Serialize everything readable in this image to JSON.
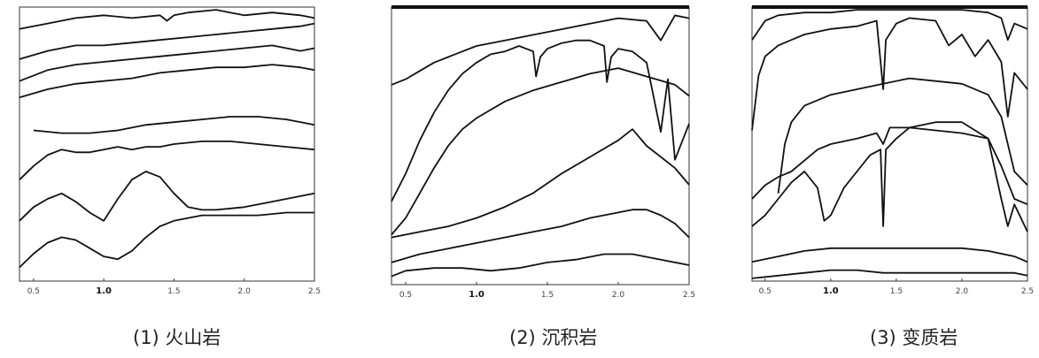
{
  "chart_data": [
    {
      "type": "line",
      "title": "(1) 火山岩",
      "x_ticks": [
        "0.5",
        "1.0",
        "1.5",
        "2.0",
        "2.5"
      ],
      "xlim": [
        0.4,
        2.5
      ],
      "ylim": [
        0,
        100
      ],
      "series": [
        {
          "x": [
            0.4,
            0.6,
            0.8,
            1.0,
            1.2,
            1.4,
            1.45,
            1.5,
            1.6,
            1.8,
            1.9,
            2.0,
            2.2,
            2.4,
            2.5
          ],
          "y": [
            92,
            94,
            96,
            97,
            96,
            97,
            95,
            97,
            98,
            99,
            98,
            97,
            98,
            97,
            96
          ]
        },
        {
          "x": [
            0.4,
            0.6,
            0.8,
            1.0,
            1.2,
            1.4,
            1.6,
            1.8,
            2.0,
            2.2,
            2.4,
            2.5
          ],
          "y": [
            81,
            84,
            86,
            86,
            87,
            88,
            89,
            90,
            91,
            92,
            93,
            94
          ]
        },
        {
          "x": [
            0.4,
            0.6,
            0.8,
            1.0,
            1.2,
            1.4,
            1.6,
            1.8,
            2.0,
            2.2,
            2.4,
            2.5
          ],
          "y": [
            73,
            77,
            79,
            80,
            81,
            82,
            83,
            84,
            85,
            86,
            84,
            85
          ]
        },
        {
          "x": [
            0.4,
            0.6,
            0.8,
            1.0,
            1.2,
            1.4,
            1.6,
            1.8,
            2.0,
            2.2,
            2.4,
            2.5
          ],
          "y": [
            67,
            70,
            72,
            73,
            74,
            76,
            77,
            78,
            78,
            79,
            78,
            77
          ]
        },
        {
          "x": [
            0.5,
            0.7,
            0.9,
            1.1,
            1.3,
            1.5,
            1.7,
            1.9,
            2.1,
            2.3,
            2.5
          ],
          "y": [
            55,
            54,
            54,
            55,
            57,
            58,
            59,
            60,
            60,
            59,
            57
          ]
        },
        {
          "x": [
            0.4,
            0.5,
            0.6,
            0.7,
            0.8,
            0.9,
            1.0,
            1.1,
            1.2,
            1.3,
            1.4,
            1.5,
            1.7,
            1.9,
            2.1,
            2.3,
            2.5
          ],
          "y": [
            37,
            42,
            46,
            48,
            47,
            47,
            48,
            49,
            48,
            49,
            49,
            50,
            51,
            51,
            50,
            49,
            48
          ]
        },
        {
          "x": [
            0.4,
            0.5,
            0.6,
            0.7,
            0.8,
            0.9,
            1.0,
            1.1,
            1.2,
            1.3,
            1.4,
            1.5,
            1.6,
            1.7,
            1.8,
            2.0,
            2.2,
            2.5
          ],
          "y": [
            22,
            27,
            30,
            32,
            29,
            25,
            22,
            30,
            37,
            40,
            38,
            32,
            27,
            26,
            26,
            27,
            29,
            32
          ]
        },
        {
          "x": [
            0.4,
            0.5,
            0.6,
            0.7,
            0.8,
            0.9,
            1.0,
            1.1,
            1.2,
            1.3,
            1.4,
            1.5,
            1.7,
            1.9,
            2.1,
            2.3,
            2.5
          ],
          "y": [
            5,
            10,
            14,
            16,
            15,
            12,
            9,
            8,
            11,
            16,
            20,
            22,
            24,
            24,
            24,
            25,
            25
          ]
        }
      ]
    },
    {
      "type": "line",
      "title": "(2) 沉积岩",
      "x_ticks": [
        "0.5",
        "1.0",
        "1.5",
        "2.0",
        "2.5"
      ],
      "xlim": [
        0.4,
        2.5
      ],
      "ylim": [
        0,
        100
      ],
      "series": [
        {
          "x": [
            0.4,
            0.5,
            0.6,
            0.7,
            0.8,
            0.9,
            1.0,
            1.2,
            1.4,
            1.6,
            1.8,
            2.0,
            2.2,
            2.3,
            2.4,
            2.5
          ],
          "y": [
            72,
            74,
            77,
            80,
            82,
            84,
            86,
            88,
            90,
            92,
            94,
            96,
            95,
            88,
            97,
            96
          ]
        },
        {
          "x": [
            0.4,
            0.5,
            0.6,
            0.7,
            0.8,
            0.9,
            1.0,
            1.1,
            1.2,
            1.3,
            1.4,
            1.42,
            1.45,
            1.5,
            1.6,
            1.7,
            1.8,
            1.9,
            1.92,
            1.95,
            2.0,
            2.1,
            2.2,
            2.3,
            2.35,
            2.4,
            2.5
          ],
          "y": [
            30,
            40,
            52,
            62,
            70,
            76,
            80,
            83,
            84,
            86,
            84,
            75,
            82,
            85,
            87,
            88,
            88,
            86,
            73,
            82,
            85,
            84,
            80,
            55,
            74,
            45,
            58
          ]
        },
        {
          "x": [
            0.4,
            0.5,
            0.6,
            0.7,
            0.8,
            0.9,
            1.0,
            1.2,
            1.4,
            1.6,
            1.8,
            2.0,
            2.2,
            2.4,
            2.5
          ],
          "y": [
            18,
            24,
            33,
            42,
            50,
            56,
            60,
            66,
            70,
            73,
            76,
            78,
            75,
            72,
            68
          ]
        },
        {
          "x": [
            0.4,
            0.6,
            0.8,
            1.0,
            1.2,
            1.4,
            1.6,
            1.8,
            2.0,
            2.1,
            2.2,
            2.4,
            2.5
          ],
          "y": [
            17,
            19,
            21,
            24,
            28,
            33,
            40,
            46,
            52,
            56,
            50,
            42,
            36
          ]
        },
        {
          "x": [
            0.4,
            0.6,
            0.8,
            1.0,
            1.2,
            1.4,
            1.6,
            1.8,
            2.0,
            2.1,
            2.2,
            2.3,
            2.4,
            2.5
          ],
          "y": [
            8,
            11,
            13,
            15,
            17,
            19,
            21,
            24,
            26,
            27,
            27,
            25,
            22,
            17
          ]
        },
        {
          "x": [
            0.4,
            0.5,
            0.7,
            0.9,
            1.1,
            1.3,
            1.5,
            1.7,
            1.9,
            2.1,
            2.3,
            2.5
          ],
          "y": [
            3,
            5,
            6,
            6,
            5,
            6,
            8,
            9,
            11,
            11,
            9,
            7
          ]
        }
      ]
    },
    {
      "type": "line",
      "title": "(3) 变质岩",
      "x_ticks": [
        "0.5",
        "1.0",
        "1.5",
        "2.0",
        "2.5"
      ],
      "xlim": [
        0.4,
        2.5
      ],
      "ylim": [
        0,
        100
      ],
      "series": [
        {
          "x": [
            0.4,
            0.5,
            0.6,
            0.8,
            1.0,
            1.2,
            1.4,
            1.6,
            1.8,
            2.0,
            2.2,
            2.3,
            2.35,
            2.4,
            2.5
          ],
          "y": [
            88,
            95,
            97,
            98,
            98,
            99,
            99,
            99,
            99,
            99,
            98,
            96,
            88,
            94,
            92
          ]
        },
        {
          "x": [
            0.4,
            0.45,
            0.5,
            0.6,
            0.7,
            0.8,
            1.0,
            1.2,
            1.35,
            1.4,
            1.42,
            1.5,
            1.6,
            1.8,
            1.9,
            2.0,
            2.1,
            2.2,
            2.3,
            2.35,
            2.4,
            2.5
          ],
          "y": [
            55,
            75,
            82,
            86,
            88,
            90,
            92,
            93,
            95,
            70,
            88,
            94,
            96,
            95,
            86,
            90,
            82,
            88,
            80,
            60,
            76,
            70
          ]
        },
        {
          "x": [
            0.6,
            0.65,
            0.7,
            0.8,
            1.0,
            1.2,
            1.4,
            1.6,
            1.8,
            2.0,
            2.2,
            2.3,
            2.4,
            2.5
          ],
          "y": [
            32,
            50,
            58,
            64,
            68,
            70,
            72,
            74,
            73,
            72,
            68,
            60,
            40,
            35
          ]
        },
        {
          "x": [
            0.4,
            0.5,
            0.6,
            0.7,
            0.8,
            0.9,
            1.0,
            1.2,
            1.35,
            1.4,
            1.45,
            1.6,
            1.8,
            2.0,
            2.2,
            2.3,
            2.4,
            2.5
          ],
          "y": [
            30,
            35,
            38,
            40,
            44,
            48,
            50,
            52,
            54,
            50,
            56,
            56,
            55,
            54,
            52,
            42,
            30,
            28
          ]
        },
        {
          "x": [
            0.4,
            0.5,
            0.6,
            0.7,
            0.8,
            0.9,
            0.95,
            1.0,
            1.1,
            1.2,
            1.3,
            1.38,
            1.4,
            1.42,
            1.5,
            1.6,
            1.8,
            2.0,
            2.2,
            2.3,
            2.35,
            2.4,
            2.5
          ],
          "y": [
            20,
            24,
            30,
            36,
            40,
            34,
            22,
            24,
            34,
            40,
            46,
            48,
            20,
            48,
            52,
            56,
            58,
            58,
            52,
            30,
            20,
            28,
            18
          ]
        },
        {
          "x": [
            0.4,
            0.6,
            0.8,
            1.0,
            1.2,
            1.4,
            1.6,
            1.8,
            2.0,
            2.2,
            2.4,
            2.5
          ],
          "y": [
            7,
            9,
            11,
            12,
            12,
            12,
            12,
            12,
            12,
            11,
            9,
            7
          ]
        },
        {
          "x": [
            0.4,
            0.6,
            0.8,
            1.0,
            1.2,
            1.4,
            1.6,
            1.8,
            2.0,
            2.2,
            2.4,
            2.5
          ],
          "y": [
            1,
            2,
            3,
            4,
            4,
            3,
            3,
            3,
            3,
            3,
            3,
            2
          ]
        }
      ]
    }
  ]
}
